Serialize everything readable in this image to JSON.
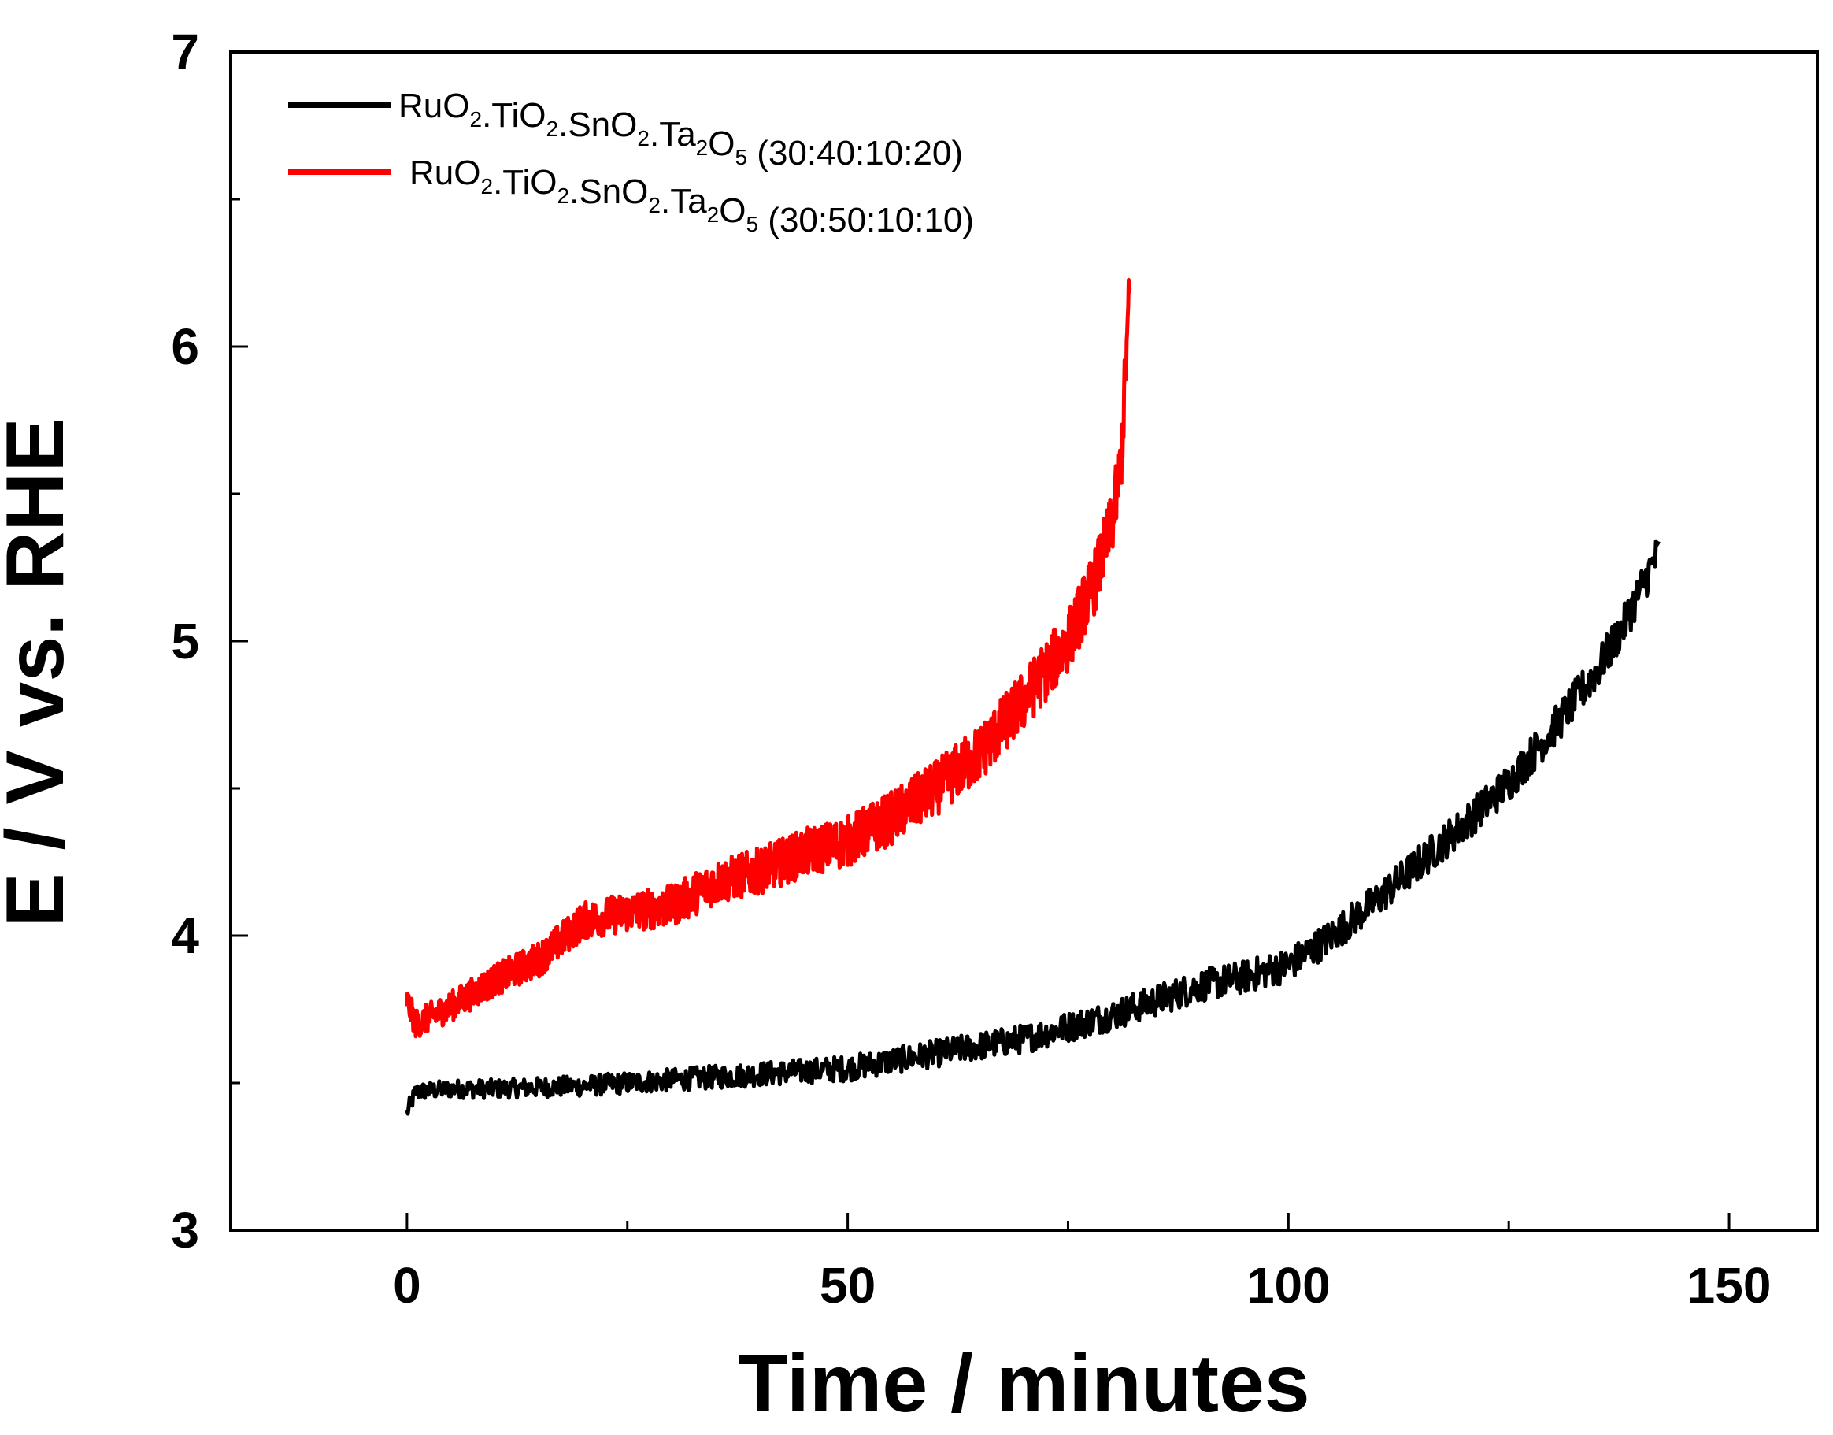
{
  "chart_data": {
    "type": "line",
    "title": "",
    "xlabel": "Time / minutes",
    "ylabel": "E / V vs. RHE",
    "xlim": [
      -20,
      160
    ],
    "ylim": [
      3,
      7
    ],
    "xticks": [
      0,
      50,
      100,
      150
    ],
    "yticks": [
      3,
      4,
      5,
      6,
      7
    ],
    "x_minor_ticks": [
      25,
      75,
      125
    ],
    "y_minor_ticks": [
      3.5,
      4.5,
      5.5,
      6.5
    ],
    "grid": false,
    "legend_position": "top-left",
    "series": [
      {
        "name": "RuO2.TiO2.SnO2.Ta2O5 (30:40:10:20)",
        "label_parts": [
          {
            "t": "RuO"
          },
          {
            "t": "2",
            "sub": true
          },
          {
            "t": ".TiO"
          },
          {
            "t": "2",
            "sub": true
          },
          {
            "t": ".SnO"
          },
          {
            "t": "2",
            "sub": true
          },
          {
            "t": ".Ta"
          },
          {
            "t": "2",
            "sub": true
          },
          {
            "t": "O"
          },
          {
            "t": "5",
            "sub": true
          },
          {
            "t": " (30:40:10:20)"
          }
        ],
        "color": "#000000",
        "noise_amplitude": 0.05,
        "x": [
          0,
          1,
          5,
          10,
          20,
          30,
          40,
          50,
          60,
          70,
          80,
          90,
          95,
          100,
          105,
          110,
          115,
          120,
          125,
          130,
          135,
          138,
          140,
          142
        ],
        "y": [
          3.4,
          3.47,
          3.48,
          3.48,
          3.49,
          3.51,
          3.53,
          3.55,
          3.6,
          3.65,
          3.73,
          3.83,
          3.86,
          3.9,
          4.0,
          4.12,
          4.25,
          4.38,
          4.52,
          4.7,
          4.9,
          5.05,
          5.18,
          5.3
        ]
      },
      {
        "name": "RuO2.TiO2.SnO2.Ta2O5 (30:50:10:10)",
        "label_parts": [
          {
            "t": "RuO"
          },
          {
            "t": "2",
            "sub": true
          },
          {
            "t": ".TiO"
          },
          {
            "t": "2",
            "sub": true
          },
          {
            "t": ".SnO"
          },
          {
            "t": "2",
            "sub": true
          },
          {
            "t": ".Ta"
          },
          {
            "t": "2",
            "sub": true
          },
          {
            "t": "O"
          },
          {
            "t": "5",
            "sub": true
          },
          {
            "t": " (30:50:10:10)"
          }
        ],
        "color": "#ff0000",
        "noise_amplitude": 0.08,
        "x": [
          0,
          1,
          5,
          10,
          15,
          20,
          25,
          30,
          35,
          40,
          45,
          50,
          55,
          60,
          65,
          70,
          75,
          78,
          80,
          81,
          82
        ],
        "y": [
          3.78,
          3.7,
          3.76,
          3.85,
          3.92,
          4.05,
          4.08,
          4.1,
          4.18,
          4.22,
          4.28,
          4.32,
          4.4,
          4.5,
          4.62,
          4.8,
          5.0,
          5.2,
          5.4,
          5.6,
          6.2
        ]
      }
    ]
  }
}
